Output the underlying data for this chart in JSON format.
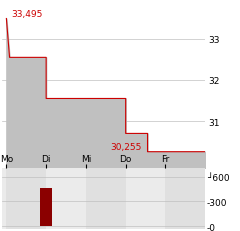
{
  "price_label_high": "33,495",
  "price_label_low": "30,255",
  "yticks_main": [
    31,
    32,
    33
  ],
  "ylim_main": [
    29.85,
    33.8
  ],
  "xlim": [
    -0.1,
    5.0
  ],
  "xtick_labels": [
    "Mo",
    "Di",
    "Mi",
    "Do",
    "Fr"
  ],
  "xtick_positions": [
    0.0,
    1.0,
    2.0,
    3.0,
    4.0
  ],
  "step_data_x": [
    0.0,
    0.08,
    1.0,
    1.0,
    2.3,
    2.3,
    3.0,
    3.0,
    3.55,
    3.55,
    5.0
  ],
  "step_data_y": [
    33.495,
    32.55,
    32.55,
    31.55,
    31.55,
    31.55,
    31.55,
    30.7,
    30.7,
    30.255,
    30.255
  ],
  "fill_base": 29.85,
  "line_color": "#cc0000",
  "fill_color": "#c0c0c0",
  "volume_bar_x": [
    1.0
  ],
  "volume_bar_height": [
    460
  ],
  "volume_bar_color": "#8b0000",
  "yticks_volume": [
    0,
    300,
    600
  ],
  "ylim_volume": [
    -30,
    700
  ],
  "bg_color": "#ebebeb",
  "main_bg": "#ffffff",
  "grid_color": "#c0c0c0",
  "annotation_color": "#cc0000",
  "annotation_fontsize": 6.5,
  "tick_label_fontsize": 6.5,
  "xtick_fontsize": 6.5
}
